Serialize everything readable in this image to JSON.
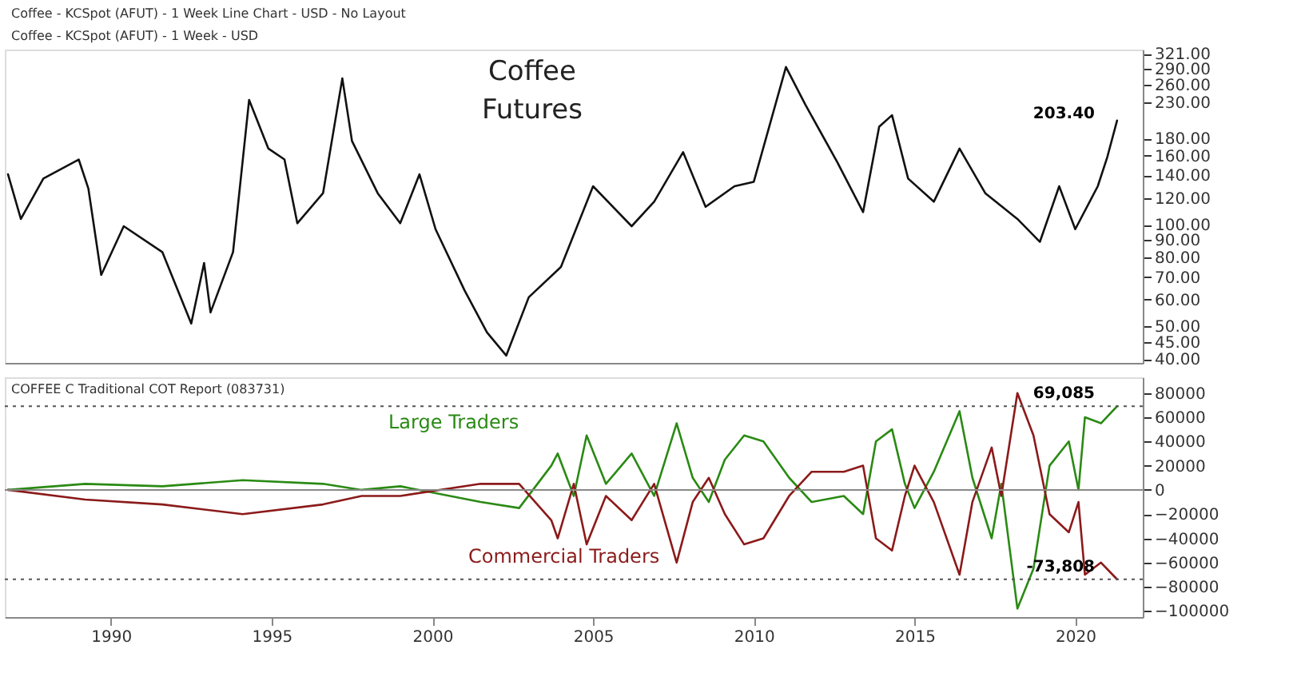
{
  "chart_data": [
    {
      "type": "line",
      "title": "Coffee Futures",
      "log": "y",
      "grid": false,
      "tick_labels": "y",
      "line_style": "solid",
      "marker": "none",
      "annotations": [
        "Coffee - KCSpot (AFUT) - 1 Week Line Chart - USD - No Layout",
        "Coffee - KCSpot (AFUT) - 1 Week - USD",
        "203.40"
      ],
      "xlim": [
        1986.7,
        2022.1
      ],
      "ylim": [
        39,
        330
      ],
      "yticks": [
        {
          "value": 40,
          "label": "40.00"
        },
        {
          "value": 45,
          "label": "45.00"
        },
        {
          "value": 50,
          "label": "50.00"
        },
        {
          "value": 60,
          "label": "60.00"
        },
        {
          "value": 70,
          "label": "70.00"
        },
        {
          "value": 80,
          "label": "80.00"
        },
        {
          "value": 90,
          "label": "90.00"
        },
        {
          "value": 100,
          "label": "100.00"
        },
        {
          "value": 120,
          "label": "120.00"
        },
        {
          "value": 140,
          "label": "140.00"
        },
        {
          "value": 160,
          "label": "160.00"
        },
        {
          "value": 180,
          "label": "180.00"
        },
        {
          "value": 230,
          "label": "230.00"
        },
        {
          "value": 260,
          "label": "260.00"
        },
        {
          "value": 290,
          "label": "290.00"
        },
        {
          "value": 321,
          "label": "321.00"
        }
      ],
      "series": [
        {
          "color": "#111111",
          "x": [
            1986.8,
            1987.2,
            1987.9,
            1989.0,
            1989.3,
            1989.7,
            1990.4,
            1991.6,
            1992.5,
            1992.9,
            1993.1,
            1993.8,
            1994.3,
            1994.9,
            1995.4,
            1995.8,
            1996.6,
            1997.2,
            1997.5,
            1998.3,
            1999.0,
            1999.6,
            2000.1,
            2001.0,
            2001.7,
            2002.3,
            2003.0,
            2004.0,
            2005.0,
            2006.2,
            2006.9,
            2007.8,
            2008.5,
            2009.4,
            2010.0,
            2011.0,
            2011.6,
            2012.6,
            2013.4,
            2013.9,
            2014.3,
            2014.8,
            2015.6,
            2016.4,
            2017.2,
            2018.2,
            2018.9,
            2019.5,
            2020.0,
            2020.7,
            2021.0,
            2021.3
          ],
          "values": [
            141,
            104,
            137,
            156,
            128,
            71,
            99,
            83,
            51,
            77,
            55,
            83,
            234,
            168,
            156,
            101,
            124,
            271,
            177,
            124,
            101,
            141,
            97,
            64,
            48,
            41,
            61,
            75,
            130,
            99,
            117,
            164,
            113,
            130,
            134,
            293,
            227,
            153,
            109,
            195,
            211,
            137,
            117,
            168,
            124,
            104,
            89,
            130,
            97,
            130,
            159,
            203.4
          ]
        }
      ]
    },
    {
      "type": "line",
      "grid": false,
      "line_style": "solid",
      "marker": "none",
      "annotations": [
        "COFFEE C Traditional COT Report (083731)"
      ],
      "xlim": [
        1986.7,
        2022.1
      ],
      "xticks": [
        1990,
        1995,
        2000,
        2005,
        2010,
        2015,
        2020
      ],
      "ylim": [
        -105000,
        93000
      ],
      "yticks": [
        -100000,
        -80000,
        -60000,
        -40000,
        -20000,
        0,
        20000,
        40000,
        60000,
        80000
      ],
      "ref_lines": [
        {
          "axis": "y",
          "value": 0,
          "color": "#888888",
          "line_style": "solid"
        },
        {
          "axis": "y",
          "value": 69085,
          "color": "#555555",
          "line_style": "dotted",
          "label": "69,085"
        },
        {
          "axis": "y",
          "value": -73808,
          "color": "#555555",
          "line_style": "dotted",
          "label": "-73,808"
        }
      ],
      "series": [
        {
          "name": "Large Traders",
          "color": "#2a8a14",
          "x": [
            1986.8,
            1989.2,
            1991.6,
            1994.1,
            1996.6,
            1997.8,
            1999.0,
            2001.5,
            2002.7,
            2003.7,
            2003.9,
            2004.4,
            2004.8,
            2005.4,
            2006.2,
            2006.9,
            2007.6,
            2008.1,
            2008.6,
            2009.1,
            2009.7,
            2010.3,
            2011.1,
            2011.8,
            2012.8,
            2013.4,
            2013.8,
            2014.3,
            2014.7,
            2015.0,
            2015.6,
            2016.4,
            2016.8,
            2017.4,
            2017.7,
            2018.2,
            2018.7,
            2019.2,
            2019.8,
            2020.1,
            2020.3,
            2020.8,
            2021.3
          ],
          "values": [
            0,
            5000,
            3000,
            8000,
            5000,
            0,
            3000,
            -10000,
            -15000,
            20000,
            30000,
            -5000,
            45000,
            5000,
            30000,
            -5000,
            55000,
            10000,
            -10000,
            25000,
            45000,
            40000,
            10000,
            -10000,
            -5000,
            -20000,
            40000,
            50000,
            5000,
            -15000,
            15000,
            65000,
            10000,
            -40000,
            5000,
            -98000,
            -65000,
            20000,
            40000,
            0,
            60000,
            55000,
            69085
          ]
        },
        {
          "name": "Commercial Traders",
          "color": "#8b1a1a",
          "x": [
            1986.8,
            1989.2,
            1991.6,
            1994.1,
            1996.6,
            1997.8,
            1999.0,
            2001.5,
            2002.7,
            2003.7,
            2003.9,
            2004.4,
            2004.8,
            2005.4,
            2006.2,
            2006.9,
            2007.6,
            2008.1,
            2008.6,
            2009.1,
            2009.7,
            2010.3,
            2011.1,
            2011.8,
            2012.8,
            2013.4,
            2013.8,
            2014.3,
            2014.7,
            2015.0,
            2015.6,
            2016.4,
            2016.8,
            2017.4,
            2017.7,
            2018.2,
            2018.7,
            2019.2,
            2019.8,
            2020.1,
            2020.3,
            2020.8,
            2021.3
          ],
          "values": [
            0,
            -8000,
            -12000,
            -20000,
            -12000,
            -5000,
            -5000,
            5000,
            5000,
            -25000,
            -40000,
            5000,
            -45000,
            -5000,
            -25000,
            5000,
            -60000,
            -10000,
            10000,
            -20000,
            -45000,
            -40000,
            -5000,
            15000,
            15000,
            20000,
            -40000,
            -50000,
            -5000,
            20000,
            -10000,
            -70000,
            -10000,
            35000,
            -5000,
            80000,
            45000,
            -20000,
            -35000,
            -10000,
            -70000,
            -60000,
            -73808
          ]
        }
      ]
    }
  ]
}
